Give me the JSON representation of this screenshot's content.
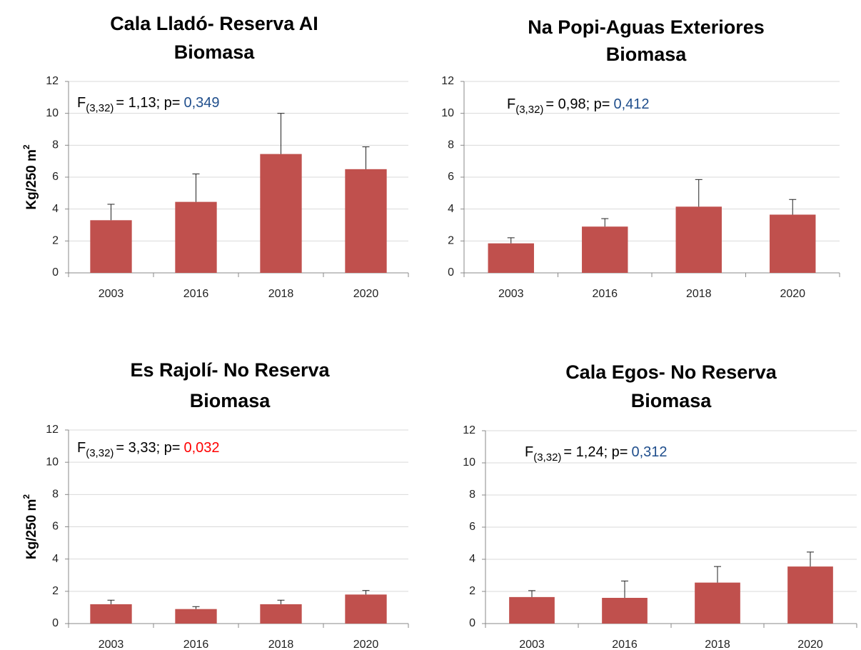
{
  "chart_data": [
    {
      "type": "bar",
      "title": "Cala Lladó- Reserva AI",
      "subtitle": "Biomasa",
      "ylabel": "Kg/250 m",
      "ylabel_sup": "2",
      "categories": [
        "2003",
        "2016",
        "2018",
        "2020"
      ],
      "values": [
        3.3,
        4.45,
        7.45,
        6.5
      ],
      "errors": [
        1.0,
        1.75,
        2.55,
        1.4
      ],
      "color": "#c0504d",
      "ylim": [
        0,
        12
      ],
      "yticks": [
        0,
        2,
        4,
        6,
        8,
        10,
        12
      ],
      "grid": true,
      "annotation": {
        "stat": "F",
        "df": "(3,32)",
        "text": "= 1,13; p=",
        "p": "0,349",
        "p_color": "#1f4e8c"
      }
    },
    {
      "type": "bar",
      "title": "Na Popi-Aguas Exteriores",
      "subtitle": "Biomasa",
      "categories": [
        "2003",
        "2016",
        "2018",
        "2020"
      ],
      "values": [
        1.85,
        2.9,
        4.15,
        3.65
      ],
      "errors": [
        0.35,
        0.5,
        1.7,
        0.95
      ],
      "color": "#c0504d",
      "ylim": [
        0,
        12
      ],
      "yticks": [
        0,
        2,
        4,
        6,
        8,
        10,
        12
      ],
      "grid": true,
      "annotation": {
        "stat": "F",
        "df": "(3,32)",
        "text": "= 0,98; p=",
        "p": "0,412",
        "p_color": "#1f4e8c"
      }
    },
    {
      "type": "bar",
      "title": "Es Rajolí- No Reserva",
      "subtitle": "Biomasa",
      "ylabel": "Kg/250 m",
      "ylabel_sup": "2",
      "categories": [
        "2003",
        "2016",
        "2018",
        "2020"
      ],
      "values": [
        1.2,
        0.9,
        1.2,
        1.8
      ],
      "errors": [
        0.25,
        0.15,
        0.25,
        0.25
      ],
      "color": "#c0504d",
      "ylim": [
        0,
        12
      ],
      "yticks": [
        0,
        2,
        4,
        6,
        8,
        10,
        12
      ],
      "grid": true,
      "annotation": {
        "stat": "F",
        "df": "(3,32)",
        "text": "= 3,33; p=",
        "p": "0,032",
        "p_color": "#ff0000"
      }
    },
    {
      "type": "bar",
      "title": "Cala Egos- No Reserva",
      "subtitle": "Biomasa",
      "categories": [
        "2003",
        "2016",
        "2018",
        "2020"
      ],
      "values": [
        1.65,
        1.6,
        2.55,
        3.55
      ],
      "errors": [
        0.4,
        1.05,
        1.0,
        0.9
      ],
      "color": "#c0504d",
      "ylim": [
        0,
        12
      ],
      "yticks": [
        0,
        2,
        4,
        6,
        8,
        10,
        12
      ],
      "grid": true,
      "annotation": {
        "stat": "F",
        "df": "(3,32)",
        "text": "= 1,24; p=",
        "p": "0,312",
        "p_color": "#1f4e8c"
      }
    }
  ]
}
